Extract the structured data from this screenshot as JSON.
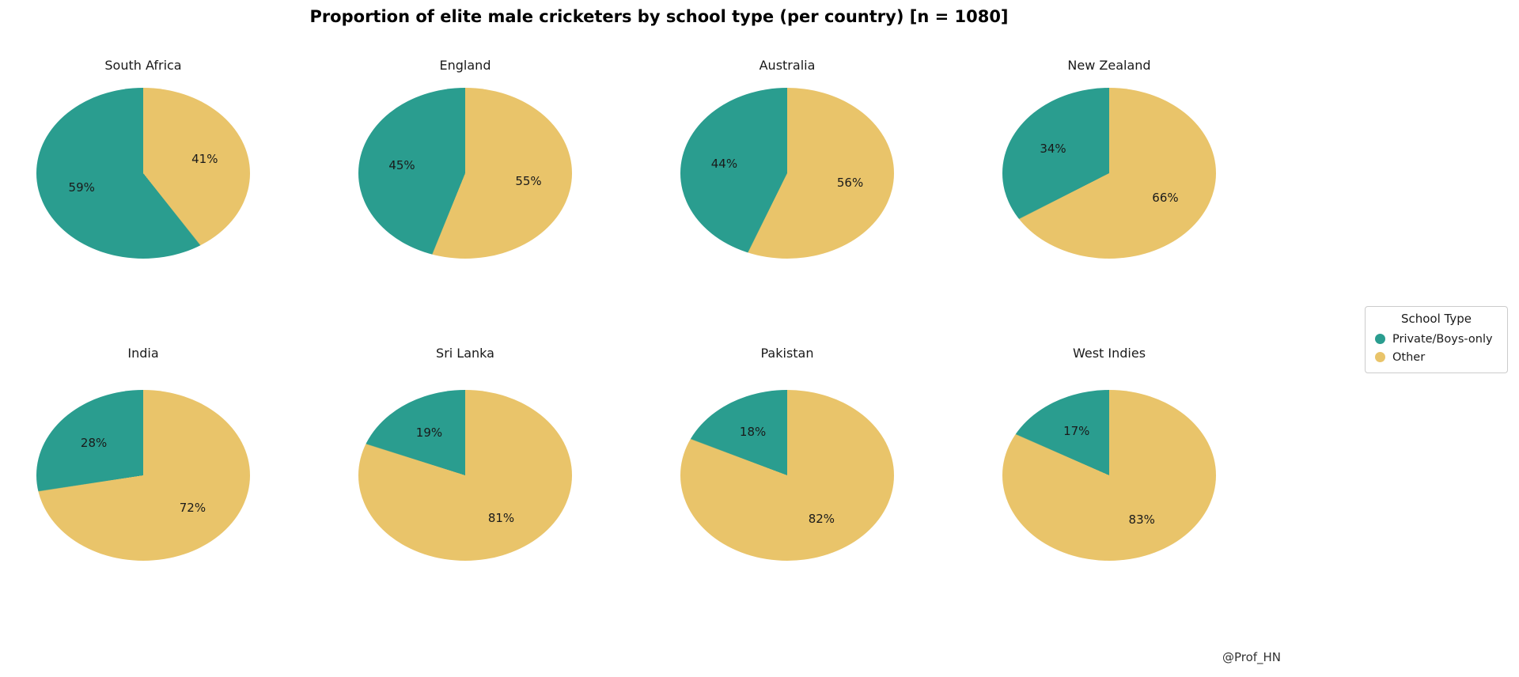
{
  "title": "Proportion of elite male cricketers by school type (per country) [n = 1080]",
  "attribution": "@Prof_HN",
  "legend": {
    "title": "School Type",
    "items": [
      {
        "label": "Private/Boys-only",
        "color": "#2a9d8f"
      },
      {
        "label": "Other",
        "color": "#e9c46a"
      }
    ]
  },
  "chart_data": {
    "type": "pie",
    "title": "Proportion of elite male cricketers by school type (per country) [n = 1080]",
    "subplots": "2 rows x 4 cols",
    "legend_title": "School Type",
    "legend_position": "center right",
    "slice_labels": [
      "Private/Boys-only",
      "Other"
    ],
    "colors": {
      "private": "#2a9d8f",
      "other": "#e9c46a"
    },
    "start_angle": 90,
    "counterclockwise": true,
    "charts": [
      {
        "country": "South Africa",
        "private_pct": 59,
        "other_pct": 41
      },
      {
        "country": "England",
        "private_pct": 45,
        "other_pct": 55
      },
      {
        "country": "Australia",
        "private_pct": 44,
        "other_pct": 56
      },
      {
        "country": "New Zealand",
        "private_pct": 34,
        "other_pct": 66
      },
      {
        "country": "India",
        "private_pct": 28,
        "other_pct": 72
      },
      {
        "country": "Sri Lanka",
        "private_pct": 19,
        "other_pct": 81
      },
      {
        "country": "Pakistan",
        "private_pct": 18,
        "other_pct": 82
      },
      {
        "country": "West Indies",
        "private_pct": 17,
        "other_pct": 83
      }
    ]
  }
}
